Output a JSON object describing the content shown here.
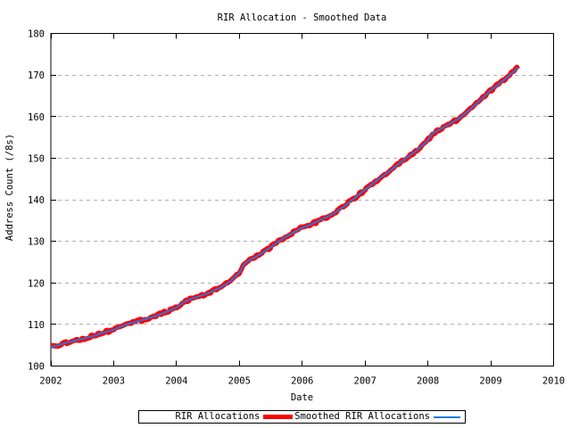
{
  "chart_data": {
    "type": "line",
    "title": "RIR Allocation - Smoothed Data",
    "xlabel": "Date",
    "ylabel": "Address Count (/8s)",
    "xlim": [
      2002,
      2010
    ],
    "ylim": [
      100,
      180
    ],
    "x_ticks": [
      2002,
      2003,
      2004,
      2005,
      2006,
      2007,
      2008,
      2009,
      2010
    ],
    "y_ticks": [
      100,
      110,
      120,
      130,
      140,
      150,
      160,
      170,
      180
    ],
    "grid": {
      "horizontal": true,
      "vertical": false,
      "style": "dashed",
      "color": "#b0b0b0"
    },
    "axis_color": "#000000",
    "background_color": "#ffffff",
    "legend": {
      "position": "bottom-center",
      "boxed": true
    },
    "series": [
      {
        "name": "RIR Allocations",
        "color": "#ff0000",
        "line_width": 5.5,
        "style": "raw-stepped",
        "jitter": 0.35
      },
      {
        "name": "Smoothed RIR Allocations",
        "color": "#1e78e8",
        "line_width": 2,
        "style": "smooth"
      }
    ],
    "points": [
      [
        2002.0,
        104.6
      ],
      [
        2002.1,
        104.9
      ],
      [
        2002.2,
        105.4
      ],
      [
        2002.3,
        105.8
      ],
      [
        2002.4,
        106.2
      ],
      [
        2002.5,
        106.5
      ],
      [
        2002.6,
        106.9
      ],
      [
        2002.7,
        107.3
      ],
      [
        2002.8,
        107.9
      ],
      [
        2002.9,
        108.3
      ],
      [
        2003.0,
        108.7
      ],
      [
        2003.1,
        109.4
      ],
      [
        2003.2,
        110.0
      ],
      [
        2003.3,
        110.4
      ],
      [
        2003.4,
        110.8
      ],
      [
        2003.5,
        111.3
      ],
      [
        2003.6,
        111.7
      ],
      [
        2003.7,
        112.2
      ],
      [
        2003.8,
        112.8
      ],
      [
        2003.9,
        113.4
      ],
      [
        2004.0,
        114.1
      ],
      [
        2004.1,
        115.2
      ],
      [
        2004.2,
        116.0
      ],
      [
        2004.35,
        116.7
      ],
      [
        2004.5,
        117.5
      ],
      [
        2004.6,
        118.2
      ],
      [
        2004.7,
        118.9
      ],
      [
        2004.85,
        120.3
      ],
      [
        2004.95,
        121.8
      ],
      [
        2005.0,
        122.4
      ],
      [
        2005.08,
        124.6
      ],
      [
        2005.2,
        125.8
      ],
      [
        2005.3,
        126.6
      ],
      [
        2005.4,
        127.6
      ],
      [
        2005.5,
        128.6
      ],
      [
        2005.6,
        129.7
      ],
      [
        2005.7,
        130.7
      ],
      [
        2005.85,
        132.0
      ],
      [
        2006.0,
        133.3
      ],
      [
        2006.1,
        133.8
      ],
      [
        2006.2,
        134.5
      ],
      [
        2006.3,
        135.2
      ],
      [
        2006.4,
        135.9
      ],
      [
        2006.5,
        136.7
      ],
      [
        2006.6,
        137.7
      ],
      [
        2006.7,
        138.8
      ],
      [
        2006.85,
        140.6
      ],
      [
        2007.0,
        142.4
      ],
      [
        2007.1,
        143.6
      ],
      [
        2007.2,
        144.8
      ],
      [
        2007.3,
        145.9
      ],
      [
        2007.4,
        147.0
      ],
      [
        2007.5,
        148.2
      ],
      [
        2007.6,
        149.4
      ],
      [
        2007.7,
        150.5
      ],
      [
        2007.8,
        151.6
      ],
      [
        2007.9,
        152.9
      ],
      [
        2008.0,
        154.3
      ],
      [
        2008.07,
        155.9
      ],
      [
        2008.15,
        156.6
      ],
      [
        2008.25,
        157.4
      ],
      [
        2008.4,
        158.7
      ],
      [
        2008.5,
        159.6
      ],
      [
        2008.6,
        160.9
      ],
      [
        2008.7,
        162.1
      ],
      [
        2008.85,
        164.2
      ],
      [
        2009.0,
        166.3
      ],
      [
        2009.1,
        167.5
      ],
      [
        2009.2,
        168.7
      ],
      [
        2009.3,
        170.0
      ],
      [
        2009.38,
        171.0
      ],
      [
        2009.43,
        171.8
      ]
    ]
  }
}
